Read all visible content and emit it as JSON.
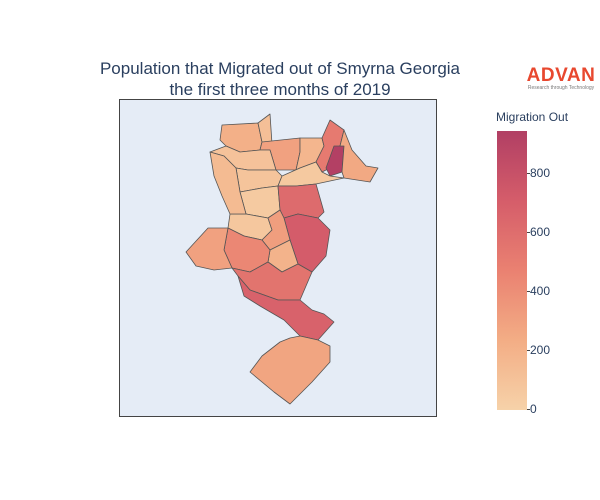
{
  "title": {
    "line1": "Population that Migrated out of Smyrna Georgia",
    "line2": "the first three months of 2019"
  },
  "logo": {
    "main": "ADVAN",
    "sub": "Research through Technology",
    "color": "#e8482f"
  },
  "map": {
    "background": "#e5ecf6",
    "border": "#444444"
  },
  "colorbar": {
    "title": "Migration Out",
    "colorscale": [
      "#f6d2a9",
      "#f3ad85",
      "#ea8171",
      "#d55d6a",
      "#b13f64"
    ],
    "range": [
      0,
      950
    ],
    "ticks": [
      "0",
      "200",
      "400",
      "600",
      "800"
    ]
  },
  "regions": [
    {
      "id": "r1",
      "value": 220
    },
    {
      "id": "r2",
      "value": 120
    },
    {
      "id": "r3",
      "value": 300
    },
    {
      "id": "r4",
      "value": 100
    },
    {
      "id": "r5",
      "value": 180
    },
    {
      "id": "r6",
      "value": 520
    },
    {
      "id": "r7",
      "value": 940
    },
    {
      "id": "r8",
      "value": 260
    },
    {
      "id": "r9",
      "value": 90
    },
    {
      "id": "r10",
      "value": 60
    },
    {
      "id": "r11",
      "value": 50
    },
    {
      "id": "r12",
      "value": 70
    },
    {
      "id": "r13",
      "value": 620
    },
    {
      "id": "r14",
      "value": 720
    },
    {
      "id": "r15",
      "value": 320
    },
    {
      "id": "r16",
      "value": 200
    },
    {
      "id": "r17",
      "value": 440
    },
    {
      "id": "r18",
      "value": 560
    },
    {
      "id": "r19",
      "value": 680
    },
    {
      "id": "r20",
      "value": 300
    },
    {
      "id": "r21",
      "value": 280
    },
    {
      "id": "r22",
      "value": 150
    }
  ]
}
